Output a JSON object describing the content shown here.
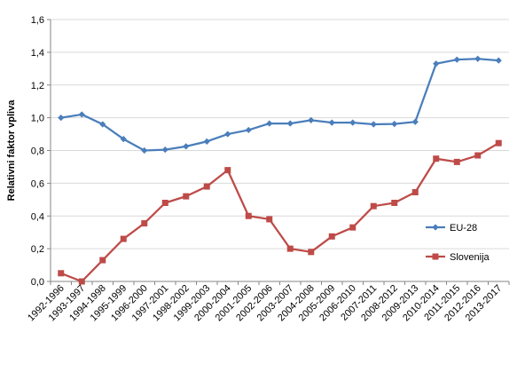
{
  "chart_data": {
    "type": "line",
    "title": "",
    "xlabel": "",
    "ylabel": "Relativni faktor vpliva",
    "ylim": [
      0,
      1.6
    ],
    "yticks": [
      "0,0",
      "0,2",
      "0,4",
      "0,6",
      "0,8",
      "1,0",
      "1,2",
      "1,4",
      "1,6"
    ],
    "grid": true,
    "legend_position": "right",
    "categories": [
      "1992-1996",
      "1993-1997",
      "1994-1998",
      "1995-1999",
      "1996-2000",
      "1997-2001",
      "1998-2002",
      "1999-2003",
      "2000-2004",
      "2001-2005",
      "2002-2006",
      "2003-2007",
      "2004-2008",
      "2005-2009",
      "2006-2010",
      "2007-2011",
      "2008-2012",
      "2009-2013",
      "2010-2014",
      "2011-2015",
      "2012-2016",
      "2013-2017"
    ],
    "series": [
      {
        "name": "EU-28",
        "color": "#4A7EBB",
        "marker": "diamond",
        "values": [
          1.0,
          1.02,
          0.96,
          0.87,
          0.8,
          0.805,
          0.825,
          0.855,
          0.9,
          0.925,
          0.965,
          0.965,
          0.985,
          0.97,
          0.97,
          0.96,
          0.962,
          0.975,
          1.33,
          1.355,
          1.36,
          1.35
        ]
      },
      {
        "name": "Slovenija",
        "color": "#BE4B48",
        "marker": "square",
        "values": [
          0.05,
          0.0,
          0.13,
          0.26,
          0.355,
          0.48,
          0.52,
          0.58,
          0.68,
          0.4,
          0.38,
          0.2,
          0.18,
          0.275,
          0.33,
          0.46,
          0.48,
          0.545,
          0.75,
          0.73,
          0.77,
          0.845
        ]
      }
    ]
  }
}
